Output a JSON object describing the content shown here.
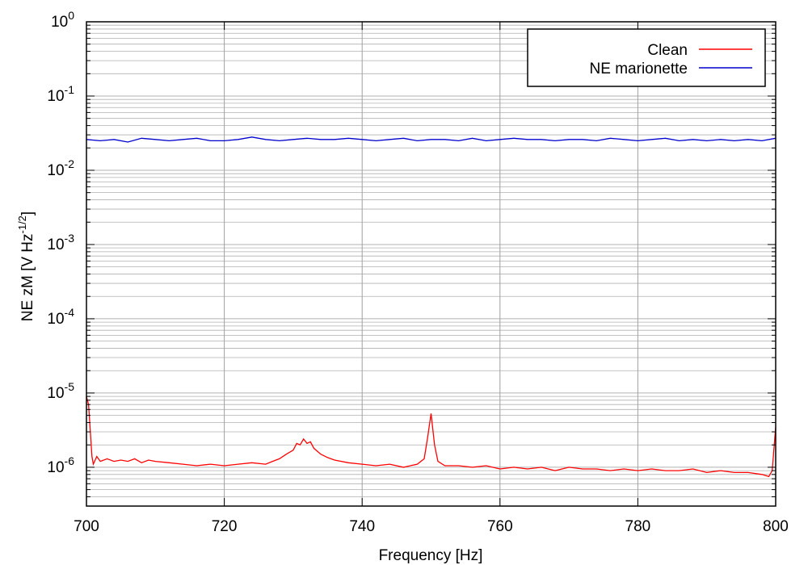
{
  "chart_data": {
    "type": "line",
    "title": "",
    "xlabel": "Frequency [Hz]",
    "ylabel": {
      "main": "NE zM [V Hz",
      "exponent": "-1/2",
      "close": "]"
    },
    "xlim": [
      700,
      800
    ],
    "ylim": [
      3e-07,
      1
    ],
    "yscale": "log",
    "grid": true,
    "legend_position": "top-right",
    "x_ticks": [
      "700",
      "720",
      "740",
      "760",
      "780",
      "800"
    ],
    "y_ticks": [
      {
        "base": "10",
        "exp": "0"
      },
      {
        "base": "10",
        "exp": "-1"
      },
      {
        "base": "10",
        "exp": "-2"
      },
      {
        "base": "10",
        "exp": "-3"
      },
      {
        "base": "10",
        "exp": "-4"
      },
      {
        "base": "10",
        "exp": "-5"
      },
      {
        "base": "10",
        "exp": "-6"
      }
    ],
    "series": [
      {
        "name": "Clean",
        "color": "#ff0000",
        "x": [
          700,
          700.3,
          700.8,
          701,
          701.5,
          702,
          703,
          704,
          705,
          706,
          707,
          708,
          709,
          710,
          712,
          714,
          716,
          718,
          720,
          722,
          724,
          726,
          727,
          728,
          729,
          730,
          730.5,
          731,
          731.5,
          732,
          732.5,
          733,
          734,
          735,
          736,
          738,
          740,
          742,
          744,
          746,
          748,
          749,
          749.5,
          750,
          750.5,
          751,
          752,
          754,
          756,
          758,
          760,
          762,
          764,
          766,
          768,
          770,
          772,
          774,
          776,
          778,
          780,
          782,
          784,
          786,
          788,
          790,
          792,
          794,
          796,
          798,
          799,
          799.5,
          800
        ],
        "y": [
          9e-06,
          7e-06,
          1.4e-06,
          1.1e-06,
          1.4e-06,
          1.2e-06,
          1.3e-06,
          1.2e-06,
          1.25e-06,
          1.2e-06,
          1.3e-06,
          1.15e-06,
          1.25e-06,
          1.2e-06,
          1.15e-06,
          1.1e-06,
          1.05e-06,
          1.1e-06,
          1.05e-06,
          1.1e-06,
          1.15e-06,
          1.1e-06,
          1.2e-06,
          1.3e-06,
          1.5e-06,
          1.7e-06,
          2.1e-06,
          2e-06,
          2.4e-06,
          2.1e-06,
          2.2e-06,
          1.8e-06,
          1.5e-06,
          1.35e-06,
          1.25e-06,
          1.15e-06,
          1.1e-06,
          1.05e-06,
          1.1e-06,
          1e-06,
          1.1e-06,
          1.3e-06,
          2.5e-06,
          5.3e-06,
          2e-06,
          1.2e-06,
          1.05e-06,
          1.05e-06,
          1e-06,
          1.05e-06,
          9.5e-07,
          1e-06,
          9.5e-07,
          1e-06,
          9e-07,
          1e-06,
          9.5e-07,
          9.5e-07,
          9e-07,
          9.5e-07,
          9e-07,
          9.5e-07,
          9e-07,
          9e-07,
          9.5e-07,
          8.5e-07,
          9e-07,
          8.5e-07,
          8.5e-07,
          8e-07,
          7.5e-07,
          9e-07,
          3.5e-06
        ]
      },
      {
        "name": "NE marionette",
        "color": "#0000cc",
        "x": [
          700,
          702,
          704,
          706,
          708,
          710,
          712,
          714,
          716,
          718,
          720,
          722,
          724,
          726,
          728,
          730,
          732,
          734,
          736,
          738,
          740,
          742,
          744,
          746,
          748,
          750,
          752,
          754,
          756,
          758,
          760,
          762,
          764,
          766,
          768,
          770,
          772,
          774,
          776,
          778,
          780,
          782,
          784,
          786,
          788,
          790,
          792,
          794,
          796,
          798,
          800
        ],
        "y": [
          0.026,
          0.025,
          0.026,
          0.024,
          0.027,
          0.026,
          0.025,
          0.026,
          0.027,
          0.025,
          0.025,
          0.026,
          0.028,
          0.026,
          0.025,
          0.026,
          0.027,
          0.026,
          0.026,
          0.027,
          0.026,
          0.025,
          0.026,
          0.027,
          0.025,
          0.026,
          0.026,
          0.025,
          0.027,
          0.025,
          0.026,
          0.027,
          0.026,
          0.026,
          0.025,
          0.026,
          0.026,
          0.025,
          0.027,
          0.026,
          0.025,
          0.026,
          0.027,
          0.025,
          0.026,
          0.025,
          0.026,
          0.025,
          0.026,
          0.025,
          0.027
        ]
      }
    ]
  }
}
